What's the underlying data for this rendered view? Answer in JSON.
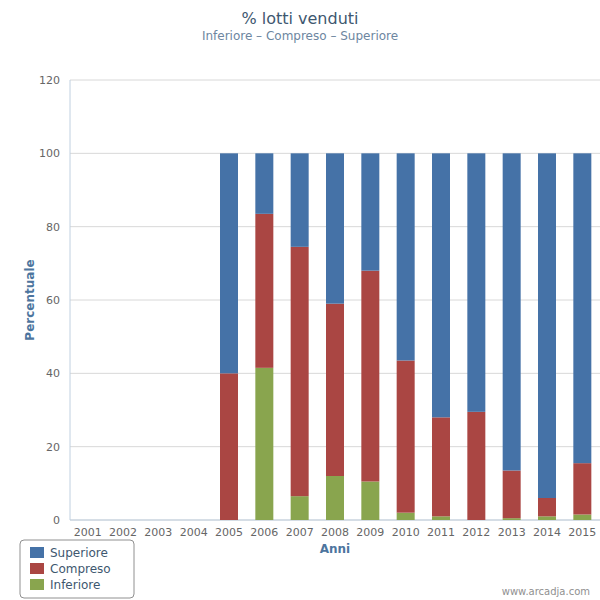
{
  "chart_data": {
    "type": "bar",
    "stacked": true,
    "title": "% lotti venduti",
    "subtitle": "Inferiore – Compreso – Superiore",
    "x_label": "Anni",
    "y_label": "Percentuale",
    "annotations": [
      "www.arcadja.com"
    ],
    "categories": [
      "2001",
      "2002",
      "2003",
      "2004",
      "2005",
      "2006",
      "2007",
      "2008",
      "2009",
      "2010",
      "2011",
      "2012",
      "2013",
      "2014",
      "2015"
    ],
    "series": [
      {
        "name": "Superiore",
        "color": "#4572a7",
        "values": [
          null,
          null,
          null,
          null,
          60,
          16.5,
          25.5,
          41,
          32,
          56.5,
          72,
          70.5,
          86.5,
          94,
          84.5
        ]
      },
      {
        "name": "Compreso",
        "color": "#aa4643",
        "values": [
          null,
          null,
          null,
          null,
          40,
          42,
          68,
          47,
          57.5,
          41.5,
          27,
          29.5,
          13,
          5,
          14
        ]
      },
      {
        "name": "Inferiore",
        "color": "#89a54e",
        "values": [
          null,
          null,
          null,
          null,
          0,
          41.5,
          6.5,
          12,
          10.5,
          2,
          1,
          0,
          0.5,
          1,
          1.5
        ]
      }
    ],
    "ylim": [
      0,
      120
    ],
    "yticks": [
      0,
      20,
      40,
      60,
      80,
      100,
      120
    ],
    "grid": true,
    "legend": "bottom-left"
  }
}
